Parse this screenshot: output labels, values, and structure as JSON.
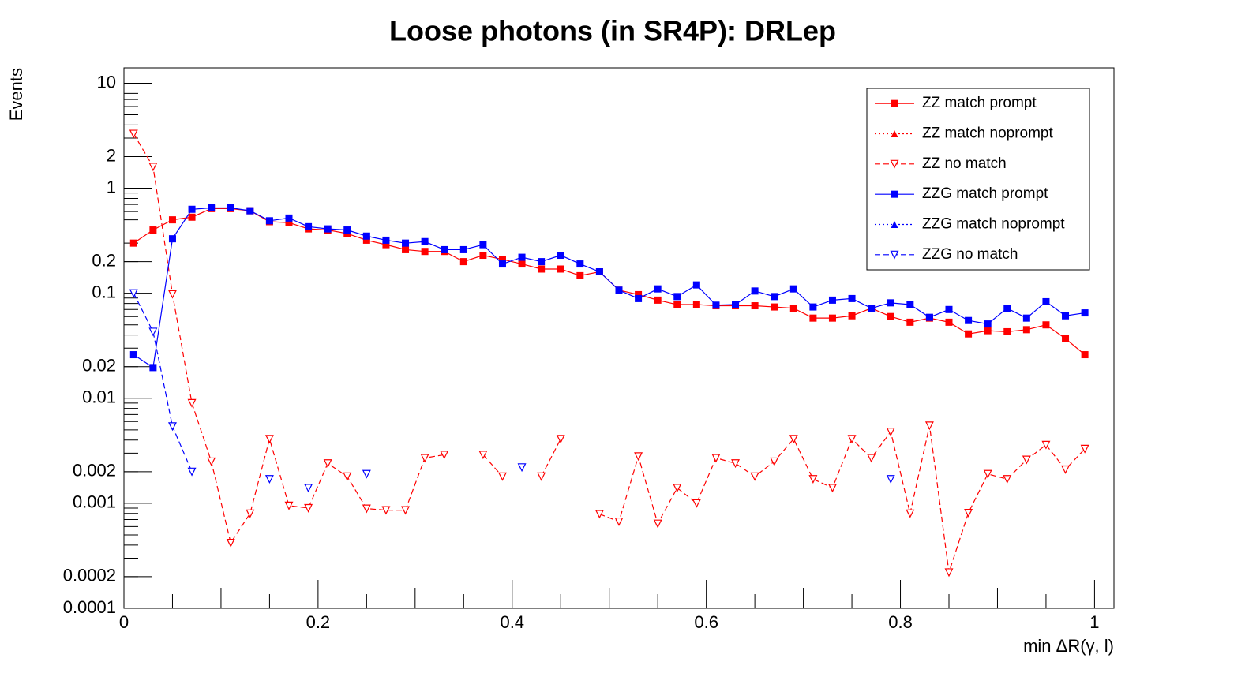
{
  "chart_data": {
    "type": "line",
    "title": "Loose photons (in SR4P): DRLep",
    "x_label": "min ΔR(γ, l)",
    "y_label": "Events",
    "log_y": true,
    "legend": "upper right",
    "xlim": [
      0,
      1.02
    ],
    "xticks": [
      0,
      0.2,
      0.4,
      0.6,
      0.8,
      1
    ],
    "ylim": [
      0.0001,
      14
    ],
    "yticks": [
      0.0001,
      0.0002,
      0.001,
      0.002,
      0.01,
      0.02,
      0.1,
      0.2,
      1,
      2,
      10
    ],
    "x": [
      0.01,
      0.03,
      0.05,
      0.07,
      0.09,
      0.11,
      0.13,
      0.15,
      0.17,
      0.19,
      0.21,
      0.23,
      0.25,
      0.27,
      0.29,
      0.31,
      0.33,
      0.35,
      0.37,
      0.39,
      0.41,
      0.43,
      0.45,
      0.47,
      0.49,
      0.51,
      0.53,
      0.55,
      0.57,
      0.59,
      0.61,
      0.63,
      0.65,
      0.67,
      0.69,
      0.71,
      0.73,
      0.75,
      0.77,
      0.79,
      0.81,
      0.83,
      0.85,
      0.87,
      0.89,
      0.91,
      0.93,
      0.95,
      0.97,
      0.99
    ],
    "series": [
      {
        "name": "ZZ match prompt",
        "color": "#ff0000",
        "marker": "square",
        "dash": "solid",
        "values": [
          0.3,
          0.4,
          0.5,
          0.53,
          0.64,
          0.64,
          0.61,
          0.48,
          0.47,
          0.41,
          0.4,
          0.37,
          0.32,
          0.29,
          0.26,
          0.25,
          0.25,
          0.2,
          0.23,
          0.21,
          0.19,
          0.17,
          0.17,
          0.147,
          0.16,
          0.107,
          0.097,
          0.086,
          0.078,
          0.078,
          0.076,
          0.076,
          0.076,
          0.074,
          0.072,
          0.058,
          0.058,
          0.061,
          0.072,
          0.06,
          0.053,
          0.058,
          0.053,
          0.041,
          0.044,
          0.043,
          0.045,
          0.05,
          0.037,
          0.026
        ]
      },
      {
        "name": "ZZ match noprompt",
        "color": "#ff0000",
        "marker": "triangle-up",
        "dash": "dotted",
        "values": [
          null,
          null,
          null,
          null,
          null,
          null,
          null,
          null,
          null,
          null,
          null,
          null,
          null,
          null,
          null,
          null,
          null,
          null,
          null,
          null,
          null,
          null,
          null,
          null,
          null,
          null,
          null,
          null,
          null,
          null,
          null,
          null,
          null,
          null,
          null,
          null,
          null,
          null,
          null,
          null,
          null,
          null,
          null,
          null,
          null,
          null,
          null,
          null,
          null,
          null
        ]
      },
      {
        "name": "ZZ no match",
        "color": "#ff0000",
        "marker": "triangle-down-open",
        "dash": "dashed",
        "values": [
          3.3,
          1.6,
          0.098,
          0.009,
          0.0025,
          0.00042,
          0.0008,
          0.0041,
          0.00095,
          0.0009,
          0.0024,
          0.0018,
          0.00089,
          0.00086,
          0.00086,
          0.0027,
          0.0029,
          null,
          0.0029,
          0.0018,
          null,
          0.0018,
          0.0041,
          null,
          0.00079,
          0.00067,
          0.0028,
          0.00064,
          0.0014,
          0.001,
          0.0027,
          0.0024,
          0.0018,
          0.0025,
          0.0041,
          0.0017,
          0.0014,
          0.0041,
          0.0027,
          0.0048,
          0.0008,
          0.0055,
          0.00022,
          0.00081,
          0.0019,
          0.0017,
          0.0026,
          0.0036,
          0.0021,
          0.0033
        ]
      },
      {
        "name": "ZZG match prompt",
        "color": "#0000ff",
        "marker": "square",
        "dash": "solid",
        "values": [
          0.026,
          0.0196,
          0.33,
          0.63,
          0.65,
          0.65,
          0.61,
          0.49,
          0.52,
          0.43,
          0.41,
          0.4,
          0.35,
          0.32,
          0.3,
          0.31,
          0.26,
          0.26,
          0.29,
          0.19,
          0.22,
          0.2,
          0.23,
          0.19,
          0.16,
          0.107,
          0.089,
          0.11,
          0.093,
          0.12,
          0.077,
          0.078,
          0.105,
          0.093,
          0.11,
          0.074,
          0.086,
          0.089,
          0.072,
          0.081,
          0.078,
          0.059,
          0.07,
          0.055,
          0.051,
          0.072,
          0.058,
          0.083,
          0.061,
          0.065
        ]
      },
      {
        "name": "ZZG match noprompt",
        "color": "#0000ff",
        "marker": "triangle-up",
        "dash": "dotted",
        "values": [
          null,
          null,
          null,
          null,
          null,
          null,
          null,
          null,
          null,
          null,
          null,
          null,
          null,
          null,
          null,
          null,
          null,
          null,
          null,
          null,
          null,
          null,
          null,
          null,
          null,
          null,
          null,
          null,
          null,
          null,
          null,
          null,
          null,
          null,
          null,
          null,
          null,
          null,
          null,
          null,
          null,
          null,
          null,
          null,
          null,
          null,
          null,
          null,
          null,
          null
        ]
      },
      {
        "name": "ZZG no match",
        "color": "#0000ff",
        "marker": "triangle-down-open",
        "dash": "dashed",
        "values": [
          0.1,
          0.043,
          0.0054,
          0.002,
          null,
          null,
          null,
          0.0017,
          null,
          0.0014,
          null,
          null,
          0.0019,
          null,
          null,
          null,
          null,
          null,
          null,
          null,
          0.0022,
          null,
          null,
          null,
          null,
          null,
          null,
          null,
          null,
          null,
          null,
          null,
          null,
          null,
          null,
          null,
          null,
          null,
          null,
          0.0017,
          null,
          null,
          null,
          null,
          null,
          null,
          null,
          null,
          null,
          null
        ]
      }
    ]
  }
}
